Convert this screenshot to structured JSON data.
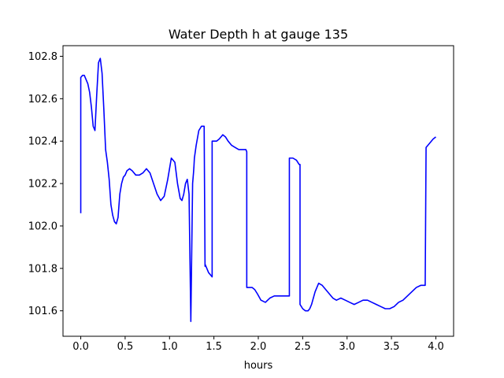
{
  "chart_data": {
    "type": "line",
    "title": "Water Depth h at gauge 135",
    "xlabel": "hours",
    "ylabel": "",
    "xlim": [
      -0.2,
      4.2
    ],
    "ylim": [
      101.48,
      102.85
    ],
    "xticks": [
      0.0,
      0.5,
      1.0,
      1.5,
      2.0,
      2.5,
      3.0,
      3.5,
      4.0
    ],
    "xtick_labels": [
      "0.0",
      "0.5",
      "1.0",
      "1.5",
      "2.0",
      "2.5",
      "3.0",
      "3.5",
      "4.0"
    ],
    "yticks": [
      101.6,
      101.8,
      102.0,
      102.2,
      102.4,
      102.6,
      102.8
    ],
    "ytick_labels": [
      "101.6",
      "101.8",
      "102.0",
      "102.2",
      "102.4",
      "102.6",
      "102.8"
    ],
    "grid": false,
    "line_color": "#0000ff",
    "series": [
      {
        "x": [
          0.0,
          0.0,
          0.02,
          0.04,
          0.06,
          0.08,
          0.1,
          0.12,
          0.14,
          0.16,
          0.18,
          0.2,
          0.22,
          0.24,
          0.26,
          0.28,
          0.3,
          0.32,
          0.34,
          0.36,
          0.38,
          0.4,
          0.42,
          0.44,
          0.46,
          0.48,
          0.5,
          0.52,
          0.55,
          0.58,
          0.62,
          0.66,
          0.7,
          0.74,
          0.78,
          0.82,
          0.86,
          0.9,
          0.94,
          0.98,
          1.02,
          1.06,
          1.09,
          1.12,
          1.14,
          1.16,
          1.18,
          1.2,
          1.22,
          1.24,
          1.26,
          1.27,
          1.275,
          1.28,
          1.3,
          1.33,
          1.36,
          1.39,
          1.4,
          1.4,
          1.42,
          1.44,
          1.46,
          1.48,
          1.48,
          1.5,
          1.53,
          1.56,
          1.6,
          1.63,
          1.66,
          1.7,
          1.74,
          1.78,
          1.82,
          1.86,
          1.87,
          1.87,
          1.9,
          1.93,
          1.96,
          1.99,
          2.03,
          2.08,
          2.13,
          2.18,
          2.23,
          2.28,
          2.33,
          2.35,
          2.35,
          2.39,
          2.43,
          2.46,
          2.47,
          2.47,
          2.5,
          2.53,
          2.56,
          2.58,
          2.6,
          2.64,
          2.68,
          2.72,
          2.76,
          2.8,
          2.84,
          2.88,
          2.93,
          2.98,
          3.03,
          3.08,
          3.13,
          3.18,
          3.23,
          3.28,
          3.33,
          3.38,
          3.43,
          3.48,
          3.53,
          3.58,
          3.63,
          3.68,
          3.73,
          3.78,
          3.83,
          3.88,
          3.89,
          3.89,
          3.93,
          3.97,
          4.0
        ],
        "y": [
          102.06,
          102.7,
          102.71,
          102.71,
          102.69,
          102.67,
          102.63,
          102.56,
          102.47,
          102.45,
          102.62,
          102.77,
          102.79,
          102.72,
          102.55,
          102.36,
          102.3,
          102.22,
          102.1,
          102.05,
          102.02,
          102.01,
          102.04,
          102.15,
          102.2,
          102.23,
          102.24,
          102.26,
          102.27,
          102.26,
          102.24,
          102.24,
          102.25,
          102.27,
          102.25,
          102.2,
          102.15,
          102.12,
          102.14,
          102.22,
          102.32,
          102.3,
          102.2,
          102.13,
          102.12,
          102.15,
          102.2,
          102.22,
          102.15,
          101.55,
          102.2,
          102.25,
          102.28,
          102.32,
          102.38,
          102.45,
          102.47,
          102.47,
          101.81,
          101.82,
          101.8,
          101.78,
          101.77,
          101.76,
          102.4,
          102.4,
          102.4,
          102.41,
          102.43,
          102.42,
          102.4,
          102.38,
          102.37,
          102.36,
          102.36,
          102.36,
          102.35,
          101.71,
          101.71,
          101.71,
          101.7,
          101.68,
          101.65,
          101.64,
          101.66,
          101.67,
          101.67,
          101.67,
          101.67,
          101.67,
          102.32,
          102.32,
          102.31,
          102.29,
          102.29,
          101.63,
          101.61,
          101.6,
          101.6,
          101.61,
          101.63,
          101.69,
          101.73,
          101.72,
          101.7,
          101.68,
          101.66,
          101.65,
          101.66,
          101.65,
          101.64,
          101.63,
          101.64,
          101.65,
          101.65,
          101.64,
          101.63,
          101.62,
          101.61,
          101.61,
          101.62,
          101.64,
          101.65,
          101.67,
          101.69,
          101.71,
          101.72,
          101.72,
          102.37,
          102.37,
          102.39,
          102.41,
          102.42
        ]
      }
    ]
  }
}
